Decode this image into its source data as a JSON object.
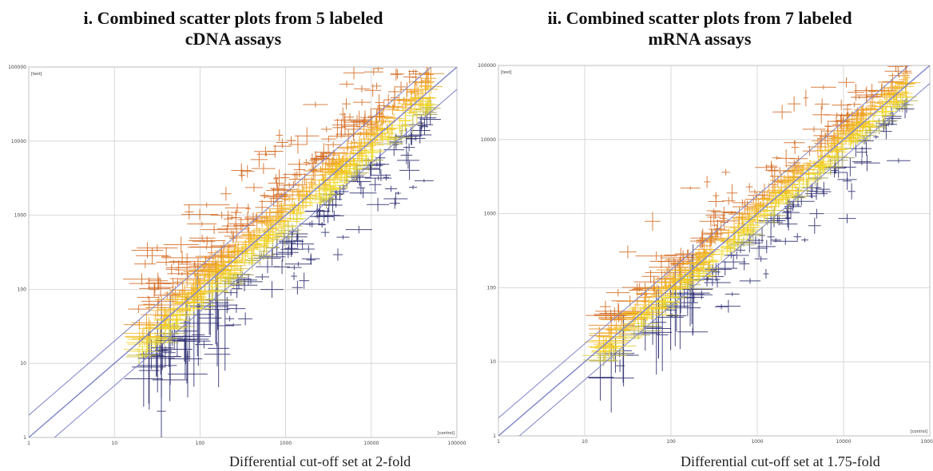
{
  "panels": [
    {
      "title_line1": "i. Combined scatter plots from 5 labeled",
      "title_line2": "cDNA assays",
      "caption": "Differential cut-off set at 2-fold",
      "chart_data": {
        "type": "scatter",
        "x_scale": "log",
        "y_scale": "log",
        "xlim": [
          1,
          100000
        ],
        "ylim": [
          1,
          100000
        ],
        "x_ticks": [
          "1",
          "10",
          "100",
          "1000",
          "10000",
          "100000"
        ],
        "y_ticks": [
          "1",
          "10",
          "100",
          "1000",
          "10000",
          "100000"
        ],
        "xlabel": "[control]",
        "ylabel": "[test]",
        "fold_cutoff": 2,
        "grid": true,
        "colors": {
          "up": "#d2691e",
          "mid_warm": "#f0a020",
          "unchanged": "#f2e02a",
          "mid_cool": "#8a8a5a",
          "down": "#2a2a6e",
          "diagonal": "#7d84c8",
          "grid": "#d0d0d0"
        },
        "distribution": {
          "x_min": 18,
          "x_max": 50000,
          "log_spread": 0.25,
          "n_points": 700,
          "outliers_up": 70,
          "outliers_down": 55
        }
      }
    },
    {
      "title_line1": "ii. Combined scatter plots from 7 labeled",
      "title_line2": "mRNA assays",
      "caption": "Differential cut-off set at 1.75-fold",
      "chart_data": {
        "type": "scatter",
        "x_scale": "log",
        "y_scale": "log",
        "xlim": [
          1,
          100000
        ],
        "ylim": [
          1,
          100000
        ],
        "x_ticks": [
          "1",
          "10",
          "100",
          "1000",
          "10000",
          "100000"
        ],
        "y_ticks": [
          "1",
          "10",
          "100",
          "1000",
          "10000",
          "100000"
        ],
        "xlabel": "[control]",
        "ylabel": "[test]",
        "fold_cutoff": 1.75,
        "grid": true,
        "colors": {
          "up": "#d2691e",
          "mid_warm": "#f0a020",
          "unchanged": "#f2e02a",
          "mid_cool": "#8a8a5a",
          "down": "#2a2a6e",
          "diagonal": "#7d84c8",
          "grid": "#d0d0d0"
        },
        "distribution": {
          "x_min": 14,
          "x_max": 55000,
          "log_spread": 0.2,
          "n_points": 650,
          "outliers_up": 30,
          "outliers_down": 25
        }
      }
    }
  ]
}
